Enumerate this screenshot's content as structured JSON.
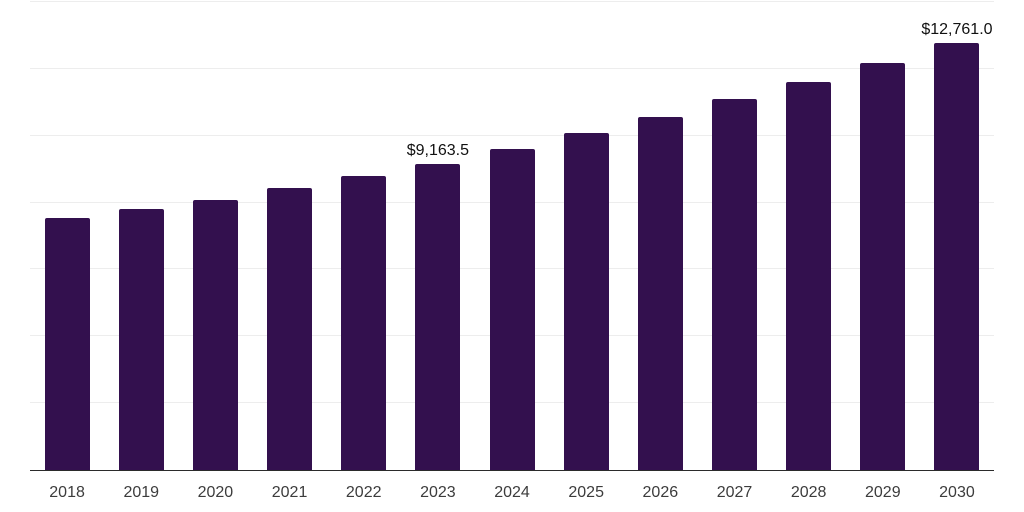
{
  "chart_data": {
    "type": "bar",
    "title": "",
    "xlabel": "",
    "ylabel": "",
    "categories": [
      "2018",
      "2019",
      "2020",
      "2021",
      "2022",
      "2023",
      "2024",
      "2025",
      "2026",
      "2027",
      "2028",
      "2029",
      "2030"
    ],
    "values": [
      7530,
      7800,
      8080,
      8430,
      8810,
      9163.5,
      9600,
      10080,
      10560,
      11100,
      11620,
      12170,
      12761
    ],
    "point_labels": [
      "",
      "",
      "",
      "",
      "",
      "$9,163.5",
      "",
      "",
      "",
      "",
      "",
      "",
      "$12,761.0"
    ],
    "ylim": [
      0,
      14000
    ],
    "grid_step": 2000,
    "grid": true,
    "y_axis_tick_labels_visible": false,
    "legend_position": "none"
  },
  "style": {
    "bar_color": "#33104e",
    "grid_color": "#ededed",
    "axis_color": "#2b2b2b",
    "tick_label_color": "#3c3c3c",
    "data_label_color": "#111111",
    "background_color": "#ffffff"
  }
}
